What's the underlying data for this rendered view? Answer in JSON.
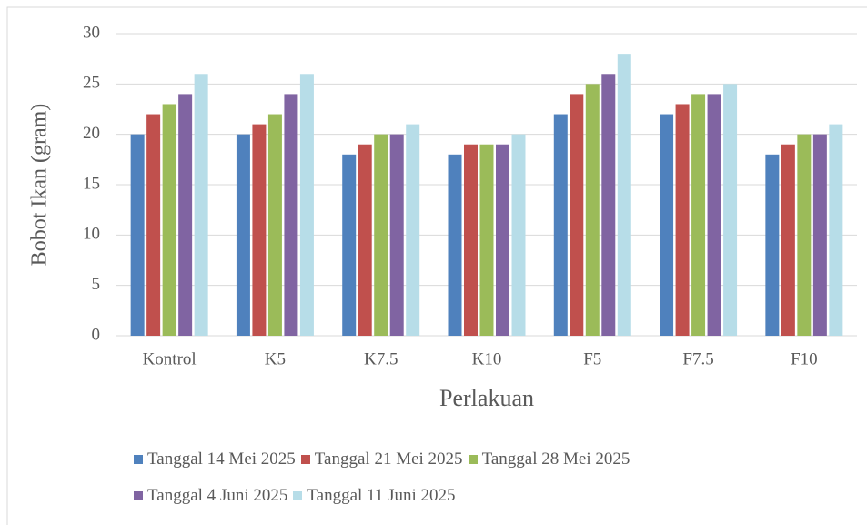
{
  "chart_data": {
    "type": "bar",
    "x_label": "Perlakuan",
    "y_label": "Bobot Ikan (gram)",
    "categories": [
      "Kontrol",
      "K5",
      "K7.5",
      "K10",
      "F5",
      "F7.5",
      "F10"
    ],
    "series": [
      {
        "name": "Tanggal 14 Mei 2025",
        "color": "#4f81bd",
        "values": [
          20,
          20,
          18,
          18,
          22,
          22,
          18
        ]
      },
      {
        "name": "Tanggal 21 Mei 2025",
        "color": "#c0504d",
        "values": [
          22,
          21,
          19,
          19,
          24,
          23,
          19
        ]
      },
      {
        "name": "Tanggal 28 Mei 2025",
        "color": "#9bbb59",
        "values": [
          23,
          22,
          20,
          19,
          25,
          24,
          20
        ]
      },
      {
        "name": "Tanggal 4 Juni 2025",
        "color": "#8064a2",
        "values": [
          24,
          24,
          20,
          19,
          26,
          24,
          20
        ]
      },
      {
        "name": "Tanggal 11 Juni 2025",
        "color": "#b7dde8",
        "values": [
          26,
          26,
          21,
          20,
          28,
          25,
          21
        ]
      }
    ],
    "ylim": [
      0,
      30
    ],
    "yticks": [
      0,
      5,
      10,
      15,
      20,
      25,
      30
    ],
    "grid": true
  }
}
